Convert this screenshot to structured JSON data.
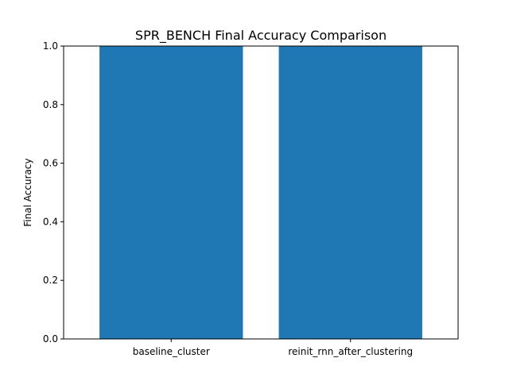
{
  "chart_data": {
    "type": "bar",
    "title": "SPR_BENCH Final Accuracy Comparison",
    "xlabel": "",
    "ylabel": "Final Accuracy",
    "categories": [
      "baseline_cluster",
      "reinit_rnn_after_clustering"
    ],
    "values": [
      1.0,
      1.0
    ],
    "ylim": [
      0,
      1
    ],
    "yticks": [
      0.0,
      0.2,
      0.4,
      0.6,
      0.8,
      1.0
    ],
    "ytick_labels": [
      "0.0",
      "0.2",
      "0.4",
      "0.6",
      "0.8",
      "1.0"
    ],
    "grid": false,
    "bar_color": "#1f77b4"
  }
}
